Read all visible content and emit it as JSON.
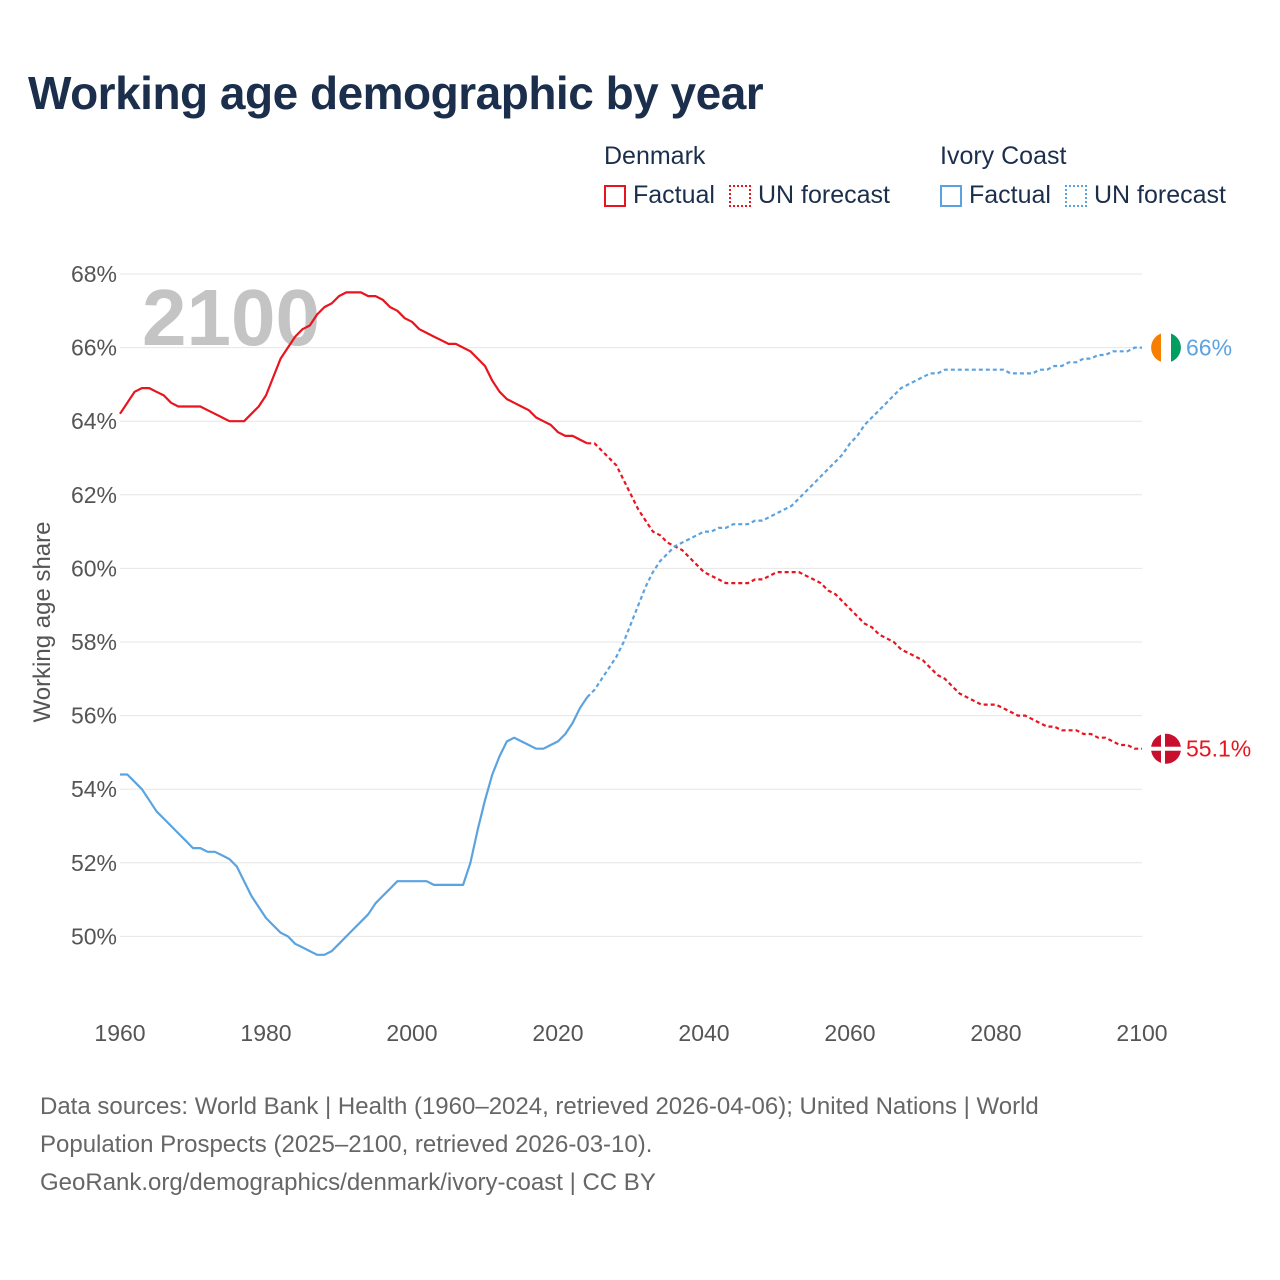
{
  "title": "Working age demographic by year",
  "legend": {
    "groups": [
      {
        "name": "Denmark",
        "factual_label": "Factual",
        "forecast_label": "UN forecast",
        "color": "#e8141e"
      },
      {
        "name": "Ivory Coast",
        "factual_label": "Factual",
        "forecast_label": "UN forecast",
        "color": "#5ba3e0"
      }
    ]
  },
  "chart_data": {
    "type": "line",
    "title": "Working age demographic by year",
    "ylabel": "Working age share",
    "xlabel": "",
    "xlim": [
      1960,
      2100
    ],
    "ylim": [
      48,
      68
    ],
    "x_ticks": [
      "1960",
      "1980",
      "2000",
      "2020",
      "2040",
      "2060",
      "2080",
      "2100"
    ],
    "y_ticks": [
      "50%",
      "52%",
      "54%",
      "56%",
      "58%",
      "60%",
      "62%",
      "64%",
      "66%",
      "68%"
    ],
    "year_watermark": "2100",
    "forecast_start_year": 2024,
    "series": [
      {
        "name": "Denmark",
        "color": "#e8141e",
        "end_label": "55.1%",
        "points": [
          [
            1960,
            64.2
          ],
          [
            1961,
            64.5
          ],
          [
            1962,
            64.8
          ],
          [
            1963,
            64.9
          ],
          [
            1964,
            64.9
          ],
          [
            1965,
            64.8
          ],
          [
            1966,
            64.7
          ],
          [
            1967,
            64.5
          ],
          [
            1968,
            64.4
          ],
          [
            1969,
            64.4
          ],
          [
            1970,
            64.4
          ],
          [
            1971,
            64.4
          ],
          [
            1972,
            64.3
          ],
          [
            1973,
            64.2
          ],
          [
            1974,
            64.1
          ],
          [
            1975,
            64.0
          ],
          [
            1976,
            64.0
          ],
          [
            1977,
            64.0
          ],
          [
            1978,
            64.2
          ],
          [
            1979,
            64.4
          ],
          [
            1980,
            64.7
          ],
          [
            1981,
            65.2
          ],
          [
            1982,
            65.7
          ],
          [
            1983,
            66.0
          ],
          [
            1984,
            66.3
          ],
          [
            1985,
            66.5
          ],
          [
            1986,
            66.6
          ],
          [
            1987,
            66.9
          ],
          [
            1988,
            67.1
          ],
          [
            1989,
            67.2
          ],
          [
            1990,
            67.4
          ],
          [
            1991,
            67.5
          ],
          [
            1992,
            67.5
          ],
          [
            1993,
            67.5
          ],
          [
            1994,
            67.4
          ],
          [
            1995,
            67.4
          ],
          [
            1996,
            67.3
          ],
          [
            1997,
            67.1
          ],
          [
            1998,
            67.0
          ],
          [
            1999,
            66.8
          ],
          [
            2000,
            66.7
          ],
          [
            2001,
            66.5
          ],
          [
            2002,
            66.4
          ],
          [
            2003,
            66.3
          ],
          [
            2004,
            66.2
          ],
          [
            2005,
            66.1
          ],
          [
            2006,
            66.1
          ],
          [
            2007,
            66.0
          ],
          [
            2008,
            65.9
          ],
          [
            2009,
            65.7
          ],
          [
            2010,
            65.5
          ],
          [
            2011,
            65.1
          ],
          [
            2012,
            64.8
          ],
          [
            2013,
            64.6
          ],
          [
            2014,
            64.5
          ],
          [
            2015,
            64.4
          ],
          [
            2016,
            64.3
          ],
          [
            2017,
            64.1
          ],
          [
            2018,
            64.0
          ],
          [
            2019,
            63.9
          ],
          [
            2020,
            63.7
          ],
          [
            2021,
            63.6
          ],
          [
            2022,
            63.6
          ],
          [
            2023,
            63.5
          ],
          [
            2024,
            63.4
          ],
          [
            2025,
            63.4
          ],
          [
            2026,
            63.2
          ],
          [
            2027,
            63.0
          ],
          [
            2028,
            62.8
          ],
          [
            2029,
            62.4
          ],
          [
            2030,
            62.0
          ],
          [
            2031,
            61.6
          ],
          [
            2032,
            61.3
          ],
          [
            2033,
            61.0
          ],
          [
            2034,
            60.9
          ],
          [
            2035,
            60.7
          ],
          [
            2036,
            60.6
          ],
          [
            2037,
            60.5
          ],
          [
            2038,
            60.3
          ],
          [
            2039,
            60.1
          ],
          [
            2040,
            59.9
          ],
          [
            2041,
            59.8
          ],
          [
            2042,
            59.7
          ],
          [
            2043,
            59.6
          ],
          [
            2044,
            59.6
          ],
          [
            2045,
            59.6
          ],
          [
            2046,
            59.6
          ],
          [
            2047,
            59.7
          ],
          [
            2048,
            59.7
          ],
          [
            2049,
            59.8
          ],
          [
            2050,
            59.9
          ],
          [
            2051,
            59.9
          ],
          [
            2052,
            59.9
          ],
          [
            2053,
            59.9
          ],
          [
            2054,
            59.8
          ],
          [
            2055,
            59.7
          ],
          [
            2056,
            59.6
          ],
          [
            2057,
            59.4
          ],
          [
            2058,
            59.3
          ],
          [
            2059,
            59.1
          ],
          [
            2060,
            58.9
          ],
          [
            2061,
            58.7
          ],
          [
            2062,
            58.5
          ],
          [
            2063,
            58.4
          ],
          [
            2064,
            58.2
          ],
          [
            2065,
            58.1
          ],
          [
            2066,
            58.0
          ],
          [
            2067,
            57.8
          ],
          [
            2068,
            57.7
          ],
          [
            2069,
            57.6
          ],
          [
            2070,
            57.5
          ],
          [
            2071,
            57.3
          ],
          [
            2072,
            57.1
          ],
          [
            2073,
            57.0
          ],
          [
            2074,
            56.8
          ],
          [
            2075,
            56.6
          ],
          [
            2076,
            56.5
          ],
          [
            2077,
            56.4
          ],
          [
            2078,
            56.3
          ],
          [
            2079,
            56.3
          ],
          [
            2080,
            56.3
          ],
          [
            2081,
            56.2
          ],
          [
            2082,
            56.1
          ],
          [
            2083,
            56.0
          ],
          [
            2084,
            56.0
          ],
          [
            2085,
            55.9
          ],
          [
            2086,
            55.8
          ],
          [
            2087,
            55.7
          ],
          [
            2088,
            55.7
          ],
          [
            2089,
            55.6
          ],
          [
            2090,
            55.6
          ],
          [
            2091,
            55.6
          ],
          [
            2092,
            55.5
          ],
          [
            2093,
            55.5
          ],
          [
            2094,
            55.4
          ],
          [
            2095,
            55.4
          ],
          [
            2096,
            55.3
          ],
          [
            2097,
            55.2
          ],
          [
            2098,
            55.2
          ],
          [
            2099,
            55.1
          ],
          [
            2100,
            55.1
          ]
        ]
      },
      {
        "name": "Ivory Coast",
        "color": "#5ba3e0",
        "end_label": "66%",
        "points": [
          [
            1960,
            54.4
          ],
          [
            1961,
            54.4
          ],
          [
            1962,
            54.2
          ],
          [
            1963,
            54.0
          ],
          [
            1964,
            53.7
          ],
          [
            1965,
            53.4
          ],
          [
            1966,
            53.2
          ],
          [
            1967,
            53.0
          ],
          [
            1968,
            52.8
          ],
          [
            1969,
            52.6
          ],
          [
            1970,
            52.4
          ],
          [
            1971,
            52.4
          ],
          [
            1972,
            52.3
          ],
          [
            1973,
            52.3
          ],
          [
            1974,
            52.2
          ],
          [
            1975,
            52.1
          ],
          [
            1976,
            51.9
          ],
          [
            1977,
            51.5
          ],
          [
            1978,
            51.1
          ],
          [
            1979,
            50.8
          ],
          [
            1980,
            50.5
          ],
          [
            1981,
            50.3
          ],
          [
            1982,
            50.1
          ],
          [
            1983,
            50.0
          ],
          [
            1984,
            49.8
          ],
          [
            1985,
            49.7
          ],
          [
            1986,
            49.6
          ],
          [
            1987,
            49.5
          ],
          [
            1988,
            49.5
          ],
          [
            1989,
            49.6
          ],
          [
            1990,
            49.8
          ],
          [
            1991,
            50.0
          ],
          [
            1992,
            50.2
          ],
          [
            1993,
            50.4
          ],
          [
            1994,
            50.6
          ],
          [
            1995,
            50.9
          ],
          [
            1996,
            51.1
          ],
          [
            1997,
            51.3
          ],
          [
            1998,
            51.5
          ],
          [
            1999,
            51.5
          ],
          [
            2000,
            51.5
          ],
          [
            2001,
            51.5
          ],
          [
            2002,
            51.5
          ],
          [
            2003,
            51.4
          ],
          [
            2004,
            51.4
          ],
          [
            2005,
            51.4
          ],
          [
            2006,
            51.4
          ],
          [
            2007,
            51.4
          ],
          [
            2008,
            52.0
          ],
          [
            2009,
            52.9
          ],
          [
            2010,
            53.7
          ],
          [
            2011,
            54.4
          ],
          [
            2012,
            54.9
          ],
          [
            2013,
            55.3
          ],
          [
            2014,
            55.4
          ],
          [
            2015,
            55.3
          ],
          [
            2016,
            55.2
          ],
          [
            2017,
            55.1
          ],
          [
            2018,
            55.1
          ],
          [
            2019,
            55.2
          ],
          [
            2020,
            55.3
          ],
          [
            2021,
            55.5
          ],
          [
            2022,
            55.8
          ],
          [
            2023,
            56.2
          ],
          [
            2024,
            56.5
          ],
          [
            2025,
            56.7
          ],
          [
            2026,
            57.0
          ],
          [
            2027,
            57.3
          ],
          [
            2028,
            57.6
          ],
          [
            2029,
            58.0
          ],
          [
            2030,
            58.5
          ],
          [
            2031,
            59.0
          ],
          [
            2032,
            59.5
          ],
          [
            2033,
            59.9
          ],
          [
            2034,
            60.2
          ],
          [
            2035,
            60.4
          ],
          [
            2036,
            60.6
          ],
          [
            2037,
            60.7
          ],
          [
            2038,
            60.8
          ],
          [
            2039,
            60.9
          ],
          [
            2040,
            61.0
          ],
          [
            2041,
            61.0
          ],
          [
            2042,
            61.1
          ],
          [
            2043,
            61.1
          ],
          [
            2044,
            61.2
          ],
          [
            2045,
            61.2
          ],
          [
            2046,
            61.2
          ],
          [
            2047,
            61.3
          ],
          [
            2048,
            61.3
          ],
          [
            2049,
            61.4
          ],
          [
            2050,
            61.5
          ],
          [
            2051,
            61.6
          ],
          [
            2052,
            61.7
          ],
          [
            2053,
            61.9
          ],
          [
            2054,
            62.1
          ],
          [
            2055,
            62.3
          ],
          [
            2056,
            62.5
          ],
          [
            2057,
            62.7
          ],
          [
            2058,
            62.9
          ],
          [
            2059,
            63.1
          ],
          [
            2060,
            63.4
          ],
          [
            2061,
            63.6
          ],
          [
            2062,
            63.9
          ],
          [
            2063,
            64.1
          ],
          [
            2064,
            64.3
          ],
          [
            2065,
            64.5
          ],
          [
            2066,
            64.7
          ],
          [
            2067,
            64.9
          ],
          [
            2068,
            65.0
          ],
          [
            2069,
            65.1
          ],
          [
            2070,
            65.2
          ],
          [
            2071,
            65.3
          ],
          [
            2072,
            65.3
          ],
          [
            2073,
            65.4
          ],
          [
            2074,
            65.4
          ],
          [
            2075,
            65.4
          ],
          [
            2076,
            65.4
          ],
          [
            2077,
            65.4
          ],
          [
            2078,
            65.4
          ],
          [
            2079,
            65.4
          ],
          [
            2080,
            65.4
          ],
          [
            2081,
            65.4
          ],
          [
            2082,
            65.3
          ],
          [
            2083,
            65.3
          ],
          [
            2084,
            65.3
          ],
          [
            2085,
            65.3
          ],
          [
            2086,
            65.4
          ],
          [
            2087,
            65.4
          ],
          [
            2088,
            65.5
          ],
          [
            2089,
            65.5
          ],
          [
            2090,
            65.6
          ],
          [
            2091,
            65.6
          ],
          [
            2092,
            65.7
          ],
          [
            2093,
            65.7
          ],
          [
            2094,
            65.8
          ],
          [
            2095,
            65.8
          ],
          [
            2096,
            65.9
          ],
          [
            2097,
            65.9
          ],
          [
            2098,
            65.9
          ],
          [
            2099,
            66.0
          ],
          [
            2100,
            66.0
          ]
        ]
      }
    ]
  },
  "footer": {
    "line1": "Data sources: World Bank | Health (1960–2024, retrieved 2026-04-06); United Nations | World",
    "line2": "Population Prospects (2025–2100, retrieved 2026-03-10).",
    "line3": "GeoRank.org/demographics/denmark/ivory-coast | CC BY"
  }
}
